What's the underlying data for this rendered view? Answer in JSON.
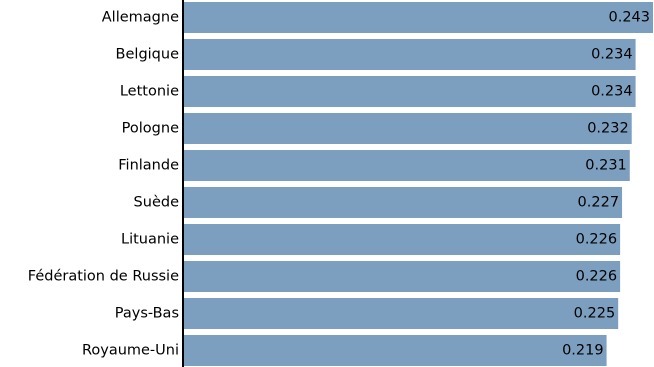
{
  "chart_data": {
    "type": "bar",
    "orientation": "horizontal",
    "categories": [
      "Allemagne",
      "Belgique",
      "Lettonie",
      "Pologne",
      "Finlande",
      "Suède",
      "Lituanie",
      "Fédération de Russie",
      "Pays-Bas",
      "Royaume-Uni"
    ],
    "values": [
      0.243,
      0.234,
      0.234,
      0.232,
      0.231,
      0.227,
      0.226,
      0.226,
      0.225,
      0.219
    ],
    "value_labels": [
      "0.243",
      "0.234",
      "0.234",
      "0.232",
      "0.231",
      "0.227",
      "0.226",
      "0.226",
      "0.225",
      "0.219"
    ],
    "title": "",
    "xlabel": "",
    "ylabel": "",
    "xlim": [
      0,
      0.243
    ],
    "grid": false,
    "legend": "none",
    "colors": {
      "bar": "#7c9fc0",
      "axis": "#000000",
      "text": "#000000"
    }
  }
}
